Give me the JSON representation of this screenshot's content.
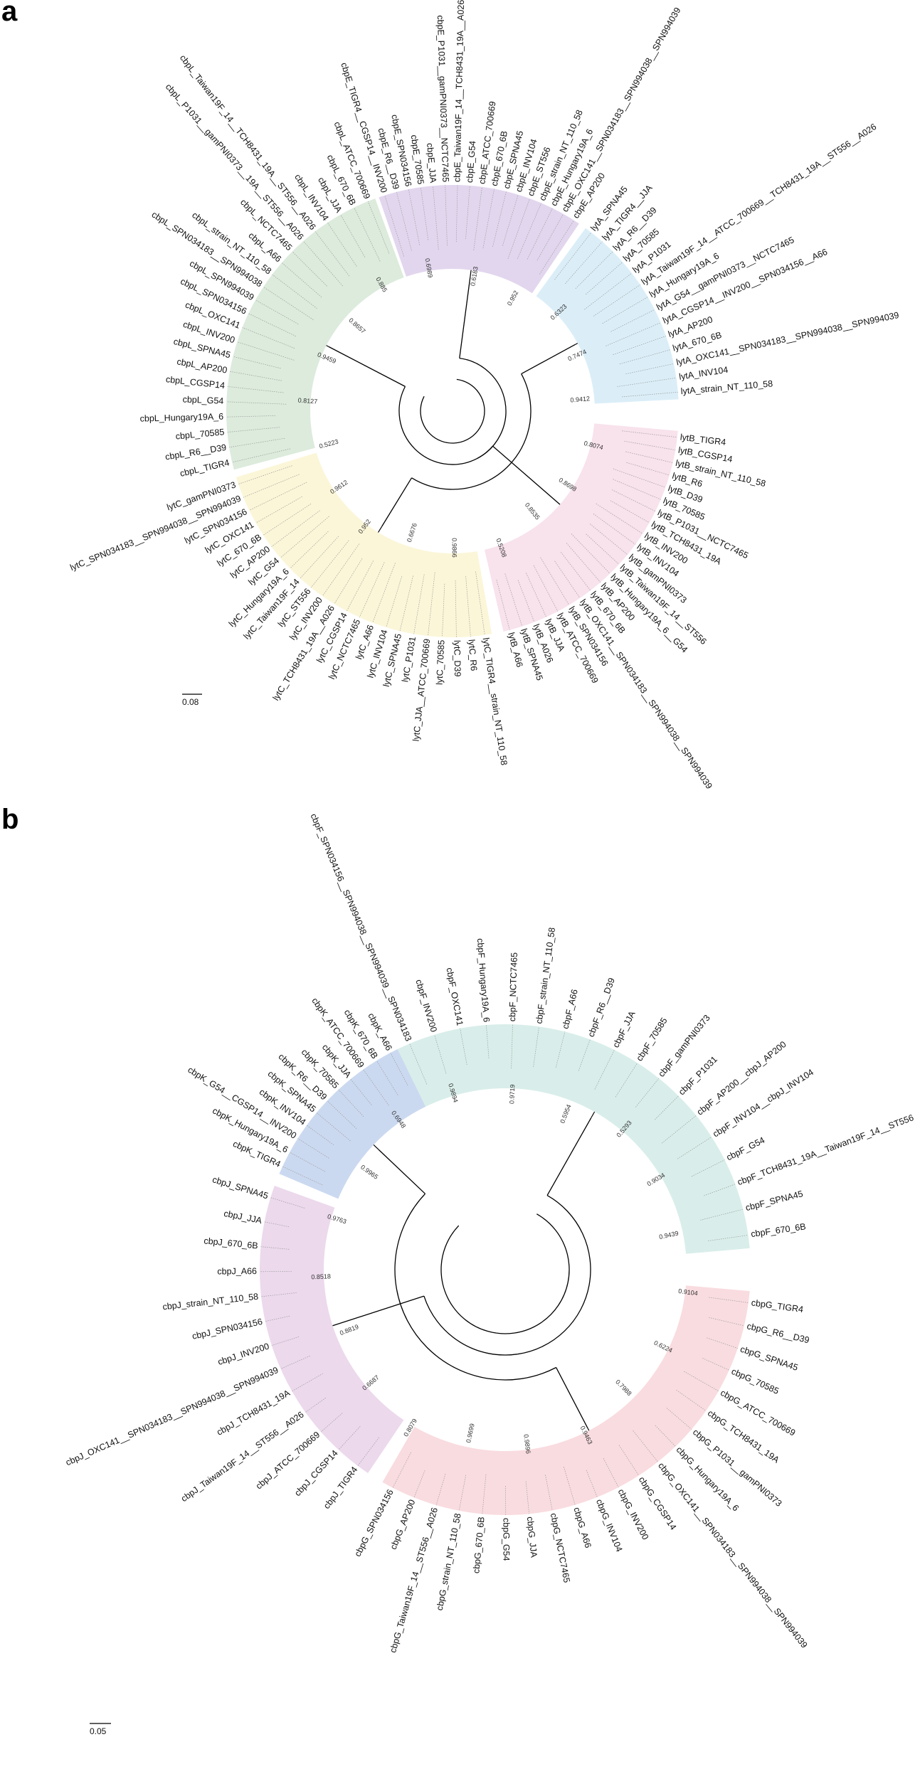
{
  "panels": [
    {
      "letter": "a",
      "scale_bar": "0.08",
      "clades": [
        {
          "name": "cbpE",
          "color": "#e2d6ee",
          "leaves": [
            "cbpE_TIGR4__CGSP14__INV200",
            "cbpE_R6__D39",
            "cbpE_SPN034156",
            "cbpE_70585",
            "cbpE_JJA",
            "cbpE_P1031__gamPNI0373__NCTC7465",
            "cbpE_Taiwan19F_14__TCH8431_19A__A026",
            "cbpE_G54",
            "cbpE_ATCC_700669",
            "cbpE_670_6B",
            "cbpE_SPNA45",
            "cbpE_INV104",
            "cbpE_ST556",
            "cbpE_strain_NT_110_58",
            "cbpE_Hungary19A_6",
            "cbpE_OXC141__SPN034183__SPN994038__SPN994039",
            "cbpE_AP200"
          ]
        },
        {
          "name": "lytA",
          "color": "#dbeef8",
          "leaves": [
            "lytA_SPNA45",
            "lytA_TIGR4__JJA",
            "lytA_R6__D39",
            "lytA_70585",
            "lytA_P1031",
            "lytA_Taiwan19F_14__ATCC_700669__TCH8431_19A__ST556__A026",
            "lytA_Hungary19A_6",
            "lytA_G54__gamPNI0373__NCTC7465",
            "lytA_CGSP14__INV200__SPN034156__A66",
            "lytA_AP200",
            "lytA_670_6B",
            "lytA_OXC141__SPN034183__SPN994038__SPN994039",
            "lytA_INV104",
            "lytA_strain_NT_110_58"
          ]
        },
        {
          "name": "lytB",
          "color": "#f8e2ec",
          "leaves": [
            "lytB_TIGR4",
            "lytB_CGSP14",
            "lytB_strain_NT_110_58",
            "lytB_R6",
            "lytB_D39",
            "lytB_70585",
            "lytB_P1031__NCTC7465",
            "lytB_TCH8431_19A",
            "lytB_INV200",
            "lytB_INV104",
            "lytB_gamPNI0373",
            "lytB_Taiwan19F_14__ST556",
            "lytB_Hungary19A_6__G54",
            "lytB_AP200",
            "lytB_670_6B",
            "lytB_OXC141__SPN034183__SPN994038__SPN994039",
            "lytB_SPN034156",
            "lytB_ATCC_700669",
            "lytB_JJA",
            "lytB_A026",
            "lytB_SPNA45",
            "lytB_A66"
          ]
        },
        {
          "name": "lytC",
          "color": "#fbf6d8",
          "leaves": [
            "lytC_TIGR4__strain_NT_110_58",
            "lytC_R6",
            "lytC_D39",
            "lytC_70585",
            "lytC_JJA__ATCC_700669",
            "lytC_P1031",
            "lytC_SPNA45",
            "lytC_INV104",
            "lytC_A66",
            "lytC_NCTC7465",
            "lytC_CGSP14",
            "lytC_TCH8431_19A__A026",
            "lytC_INV200",
            "lytC_ST556",
            "lytC_Taiwan19F_14",
            "lytC_Hungary19A_6",
            "lytC_G54",
            "lytC_AP200",
            "lytC_670_6B",
            "lytC_OXC141",
            "lytC_SPN034156",
            "lytC_SPN034183__SPN994038__SPN994039",
            "lytC_gamPNI0373"
          ]
        },
        {
          "name": "cbpL",
          "color": "#dcebdc",
          "leaves": [
            "cbpL_TIGR4",
            "cbpL_R6__D39",
            "cbpL_70585",
            "cbpL_Hungary19A_6",
            "cbpL_G54",
            "cbpL_CGSP14",
            "cbpL_AP200",
            "cbpL_SPNA45",
            "cbpL_INV200",
            "cbpL_OXC141",
            "cbpL_SPN034156",
            "cbpL_SPN994039",
            "cbpL_SPN034183__SPN994038",
            "cbpL_strain_NT_110_58",
            "cbpL_A66",
            "cbpL_NCTC7465",
            "cbpL_P1031__gamPNI0373__19A__ST556__A026",
            "cbpL_Taiwan19F_14__TCH8431_19A__ST556__A026",
            "cbpL_INV104",
            "cbpL_JJA",
            "cbpL_670_6B",
            "cbpL_ATCC_700669"
          ]
        }
      ],
      "support_values": [
        "0.6989",
        "0.6183",
        "0.952",
        "0.6323",
        "0.7474",
        "0.9412",
        "0.8074",
        "0.8698",
        "0.8535",
        "0.5208",
        "0.9866",
        "0.6676",
        "0.952",
        "0.9612",
        "0.5223",
        "0.8127",
        "0.9459",
        "0.8657",
        "0.885"
      ]
    },
    {
      "letter": "b",
      "scale_bar": "0.05",
      "clades": [
        {
          "name": "cbpF",
          "color": "#d9eeea",
          "leaves": [
            "cbpF_SPN034156__SPN994038__SPN994039__SPN034183",
            "cbpF_INV200",
            "cbpF_OXC141",
            "cbpF_Hungary19A_6",
            "cbpF_NCTC7465",
            "cbpF_strain_NT_110_58",
            "cbpF_A66",
            "cbpF_R6__D39",
            "cbpF_JJA",
            "cbpF_70585",
            "cbpF_gamPNI0373",
            "cbpF_P1031",
            "cbpF_AP200__cbpJ_AP200",
            "cbpF_INV104__cbpJ_INV104",
            "cbpF_G54",
            "cbpF_TCH8431_19A__Taiwan19F_14__ST556",
            "cbpF_SPNA45",
            "cbpF_670_6B"
          ]
        },
        {
          "name": "cbpG",
          "color": "#f9dce0",
          "leaves": [
            "cbpG_TIGR4",
            "cbpG_R6__D39",
            "cbpG_SPNA45",
            "cbpG_70585",
            "cbpG_ATCC_700669",
            "cbpG_TCH8431_19A",
            "cbpG_P1031__gamPNI0373",
            "cbpG_Hungary19A_6",
            "cbpG_OXC141__SPN034183__SPN994038__SPN994039",
            "cbpG_CGSP14",
            "cbpG_INV200",
            "cbpG_INV104",
            "cbpG_A66",
            "cbpG_NCTC7465",
            "cbpG_JJA",
            "cbpG_G54",
            "cbpG_670_6B",
            "cbpG_strain_NT_110_58",
            "cbpG_Taiwan19F_14__ST556__A026",
            "cbpG_AP200",
            "cbpG_SPN034156"
          ]
        },
        {
          "name": "cbpJ",
          "color": "#ecd9ec",
          "leaves": [
            "cbpJ_TIGR4",
            "cbpJ_CGSP14",
            "cbpJ_ATCC_700669",
            "cbpJ_Taiwan19F_14__ST556__A026",
            "cbpJ_TCH8431_19A",
            "cbpJ_OXC141__SPN034183__SPN994038__SPN994039",
            "cbpJ_INV200",
            "cbpJ_SPN034156",
            "cbpJ_strain_NT_110_58",
            "cbpJ_A66",
            "cbpJ_670_6B",
            "cbpJ_JJA",
            "cbpJ_SPNA45"
          ]
        },
        {
          "name": "cbpK",
          "color": "#cbd9f0",
          "leaves": [
            "cbpK_TIGR4",
            "cbpK_Hungary19A_6",
            "cbpK_G54__CGSP14__INV200",
            "cbpK_INV104",
            "cbpK_SPNA45",
            "cbpK_R6__D39",
            "cbpK_70585",
            "cbpK_JJA",
            "cbpK_ATCC_700669",
            "cbpK_670_6B",
            "cbpK_A66"
          ]
        }
      ],
      "support_values": [
        "0.9894",
        "0.9719",
        "0.5954",
        "0.5293",
        "0.9034",
        "0.9439",
        "0.9104",
        "0.6224",
        "0.7988",
        "0.9463",
        "0.9896",
        "0.9699",
        "0.8079",
        "0.6687",
        "0.8819",
        "0.8518",
        "0.9763",
        "0.9965",
        "0.6948"
      ]
    }
  ]
}
